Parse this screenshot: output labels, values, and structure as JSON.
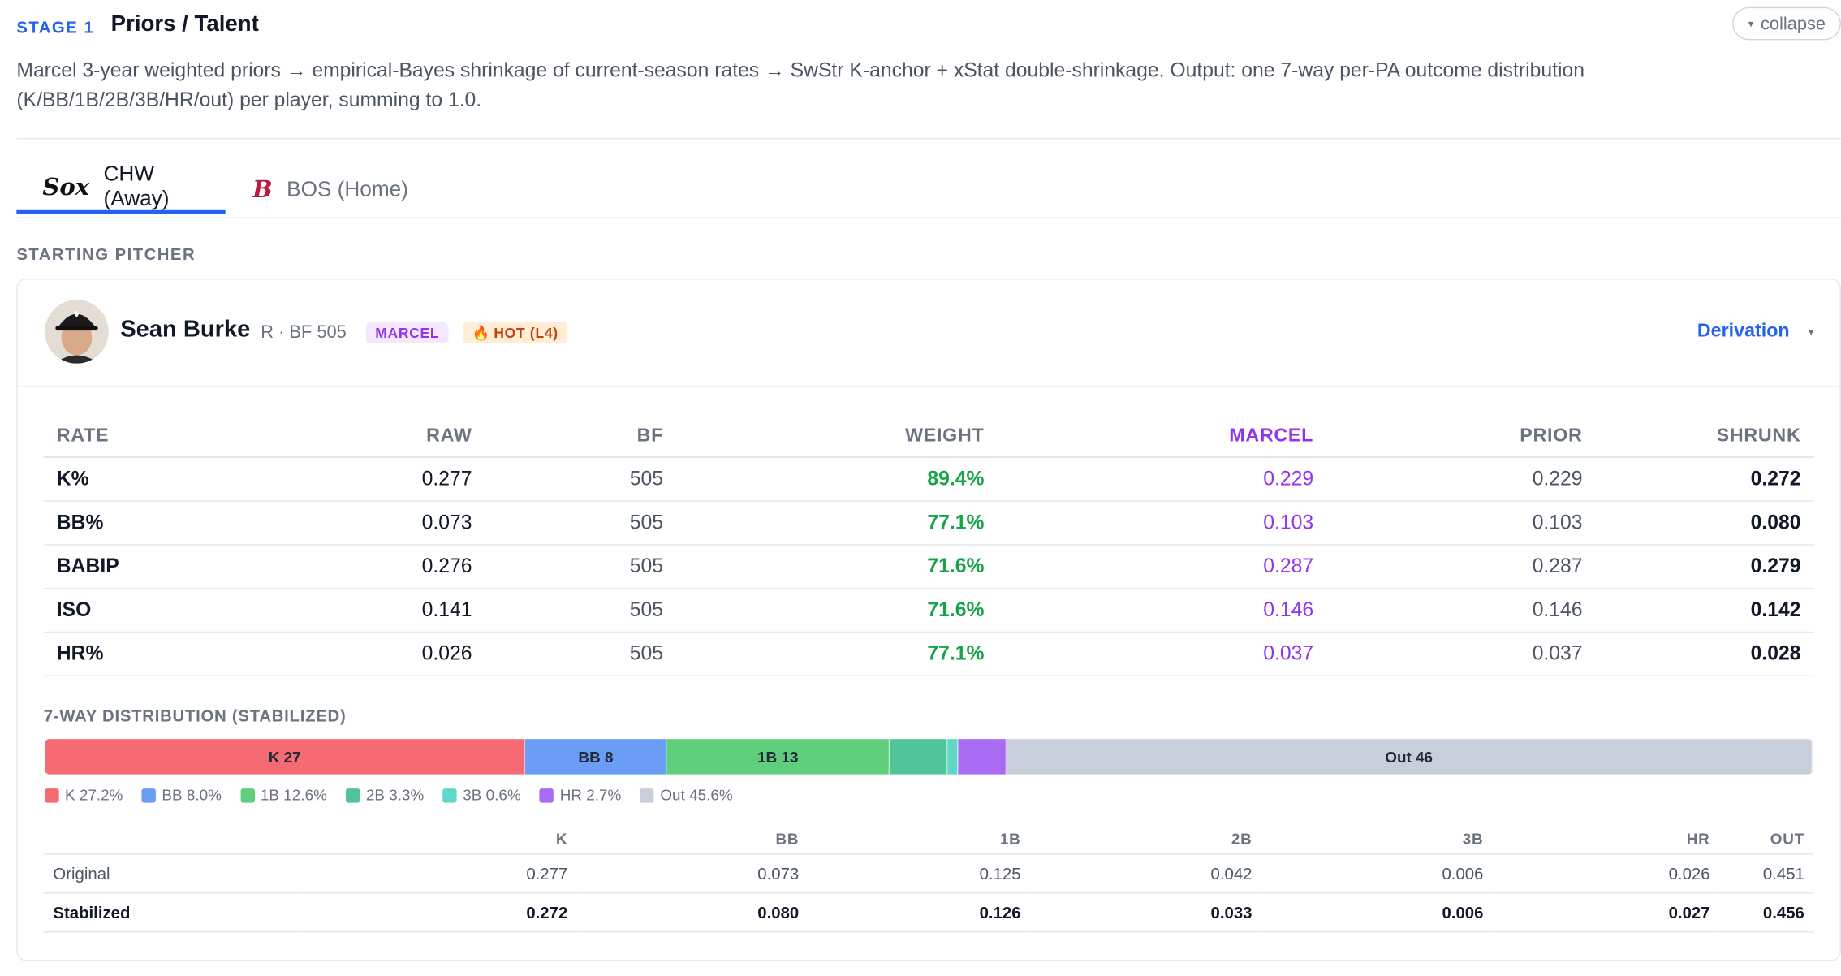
{
  "stage": {
    "label": "STAGE 1",
    "title": "Priors / Talent",
    "collapse_label": "collapse",
    "description": "Marcel 3-year weighted priors → empirical-Bayes shrinkage of current-season rates → SwStr K-anchor + xStat double-shrinkage. Output: one 7-way per-PA outcome distribution (K/BB/1B/2B/3B/HR/out) per player, summing to 1.0."
  },
  "tabs": [
    {
      "label": "CHW (Away)",
      "icon": "white-sox-logo-icon",
      "logo": "Sox",
      "active": true
    },
    {
      "label": "BOS (Home)",
      "icon": "red-sox-logo-icon",
      "logo": "B",
      "active": false
    }
  ],
  "section_label": "STARTING PITCHER",
  "pitcher": {
    "name": "Sean Burke",
    "meta": "R · BF 505",
    "badges": {
      "marcel": "MARCEL",
      "hot": "HOT (L4)",
      "hot_icon": "🔥"
    },
    "derivation_label": "Derivation"
  },
  "rates_table": {
    "headers": [
      "RATE",
      "RAW",
      "BF",
      "WEIGHT",
      "MARCEL",
      "PRIOR",
      "SHRUNK"
    ],
    "rows": [
      [
        "K%",
        "0.277",
        "505",
        "89.4%",
        "0.229",
        "0.229",
        "0.272"
      ],
      [
        "BB%",
        "0.073",
        "505",
        "77.1%",
        "0.103",
        "0.103",
        "0.080"
      ],
      [
        "BABIP",
        "0.276",
        "505",
        "71.6%",
        "0.287",
        "0.287",
        "0.279"
      ],
      [
        "ISO",
        "0.141",
        "505",
        "71.6%",
        "0.146",
        "0.146",
        "0.142"
      ],
      [
        "HR%",
        "0.026",
        "505",
        "77.1%",
        "0.037",
        "0.037",
        "0.028"
      ]
    ]
  },
  "distribution": {
    "title": "7-WAY DISTRIBUTION (STABILIZED)",
    "segments": [
      {
        "key": "K",
        "pct": 27.2,
        "label": "K 27",
        "color": "#f56a73"
      },
      {
        "key": "BB",
        "pct": 8.0,
        "label": "BB 8",
        "color": "#6b9cf6"
      },
      {
        "key": "1B",
        "pct": 12.6,
        "label": "1B 13",
        "color": "#5fcf7d"
      },
      {
        "key": "2B",
        "pct": 3.3,
        "label": "",
        "color": "#52c49a"
      },
      {
        "key": "3B",
        "pct": 0.6,
        "label": "",
        "color": "#5fd8c8"
      },
      {
        "key": "HR",
        "pct": 2.7,
        "label": "",
        "color": "#a86bf2"
      },
      {
        "key": "Out",
        "pct": 45.6,
        "label": "Out 46",
        "color": "#c8ceda"
      }
    ],
    "legend": [
      "K 27.2%",
      "BB 8.0%",
      "1B 12.6%",
      "2B 3.3%",
      "3B 0.6%",
      "HR 2.7%",
      "Out 45.6%"
    ],
    "table_headers": [
      "",
      "K",
      "BB",
      "1B",
      "2B",
      "3B",
      "HR",
      "OUT"
    ],
    "table_rows": [
      [
        "Original",
        "0.277",
        "0.073",
        "0.125",
        "0.042",
        "0.006",
        "0.026",
        "0.451"
      ],
      [
        "Stabilized",
        "0.272",
        "0.080",
        "0.126",
        "0.033",
        "0.006",
        "0.027",
        "0.456"
      ]
    ]
  }
}
